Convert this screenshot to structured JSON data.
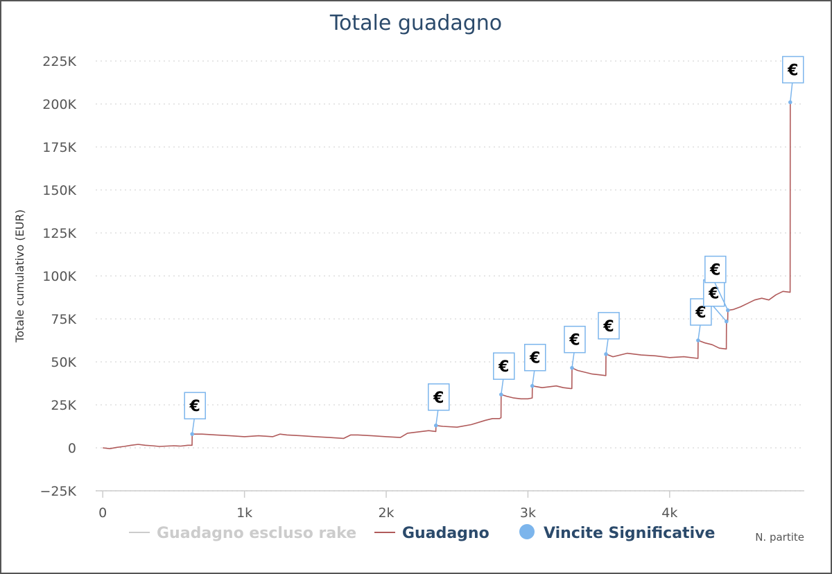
{
  "title": "Totale guadagno",
  "colors": {
    "guadagno": "#b05a5a",
    "guadagno_escluso_rake": "#cccccc",
    "vincite": "#7cb5ec",
    "title": "#2b4a6b",
    "grid": "#dddddd"
  },
  "legend": {
    "items": [
      {
        "label": "Guadagno escluso rake",
        "symbol": "line",
        "active": false
      },
      {
        "label": "Guadagno",
        "symbol": "line",
        "active": true
      },
      {
        "label": "Vincite Significative",
        "symbol": "dot",
        "active": true
      }
    ]
  },
  "chart_data": {
    "type": "line",
    "title": "Totale guadagno",
    "xlabel": "N. partite",
    "ylabel": "Totale cumulativo (EUR)",
    "xlim": [
      -50,
      4950
    ],
    "ylim": [
      -25000,
      225000
    ],
    "x_ticks": [
      0,
      1000,
      2000,
      3000,
      4000
    ],
    "x_tick_labels": [
      "0",
      "1k",
      "2k",
      "3k",
      "4k"
    ],
    "y_ticks": [
      -25000,
      0,
      25000,
      50000,
      75000,
      100000,
      125000,
      150000,
      175000,
      200000,
      225000
    ],
    "y_tick_labels": [
      "−25K",
      "0",
      "25K",
      "50K",
      "75K",
      "100K",
      "125K",
      "150K",
      "175K",
      "200K",
      "225K"
    ],
    "grid": "horizontal dotted",
    "legend_position": "bottom",
    "series": [
      {
        "name": "Guadagno",
        "x": [
          0,
          50,
          100,
          150,
          200,
          250,
          300,
          350,
          400,
          450,
          500,
          550,
          600,
          630,
          631,
          700,
          800,
          900,
          1000,
          1100,
          1200,
          1250,
          1300,
          1400,
          1500,
          1600,
          1700,
          1750,
          1800,
          1900,
          2000,
          2100,
          2150,
          2200,
          2300,
          2350,
          2351,
          2400,
          2500,
          2600,
          2700,
          2750,
          2800,
          2810,
          2811,
          2850,
          2900,
          2950,
          3000,
          3030,
          3031,
          3100,
          3200,
          3250,
          3300,
          3310,
          3311,
          3350,
          3400,
          3450,
          3500,
          3550,
          3551,
          3600,
          3700,
          3800,
          3900,
          4000,
          4100,
          4200,
          4201,
          4250,
          4300,
          4350,
          4400,
          4401,
          4410,
          4411,
          4450,
          4500,
          4550,
          4600,
          4650,
          4700,
          4750,
          4800,
          4850,
          4851
        ],
        "y": [
          0,
          -500,
          300,
          800,
          1500,
          2000,
          1500,
          1200,
          800,
          1000,
          1200,
          1000,
          1500,
          1500,
          8000,
          8000,
          7500,
          7000,
          6500,
          7000,
          6500,
          8000,
          7500,
          7000,
          6500,
          6000,
          5500,
          7500,
          7500,
          7000,
          6500,
          6000,
          8500,
          9000,
          10000,
          9500,
          13000,
          12500,
          12000,
          13500,
          16000,
          17000,
          17000,
          17500,
          31000,
          30000,
          29000,
          28500,
          28500,
          29000,
          36000,
          35000,
          36000,
          35000,
          34500,
          34500,
          46500,
          45000,
          44000,
          43000,
          42500,
          42000,
          54500,
          53000,
          55000,
          54000,
          53500,
          52500,
          53000,
          52000,
          62500,
          61000,
          60000,
          58000,
          57500,
          73500,
          73500,
          80000,
          80500,
          82000,
          84000,
          86000,
          87000,
          86000,
          89000,
          91000,
          90500,
          201000
        ]
      },
      {
        "name": "Vincite Significative",
        "type": "flags",
        "flag_label": "€",
        "x": [
          631,
          2351,
          2811,
          3031,
          3311,
          3551,
          4201,
          4401,
          4411,
          4851
        ],
        "y": [
          8000,
          13000,
          31000,
          36000,
          46500,
          54500,
          62500,
          73500,
          80000,
          201000
        ]
      }
    ]
  }
}
